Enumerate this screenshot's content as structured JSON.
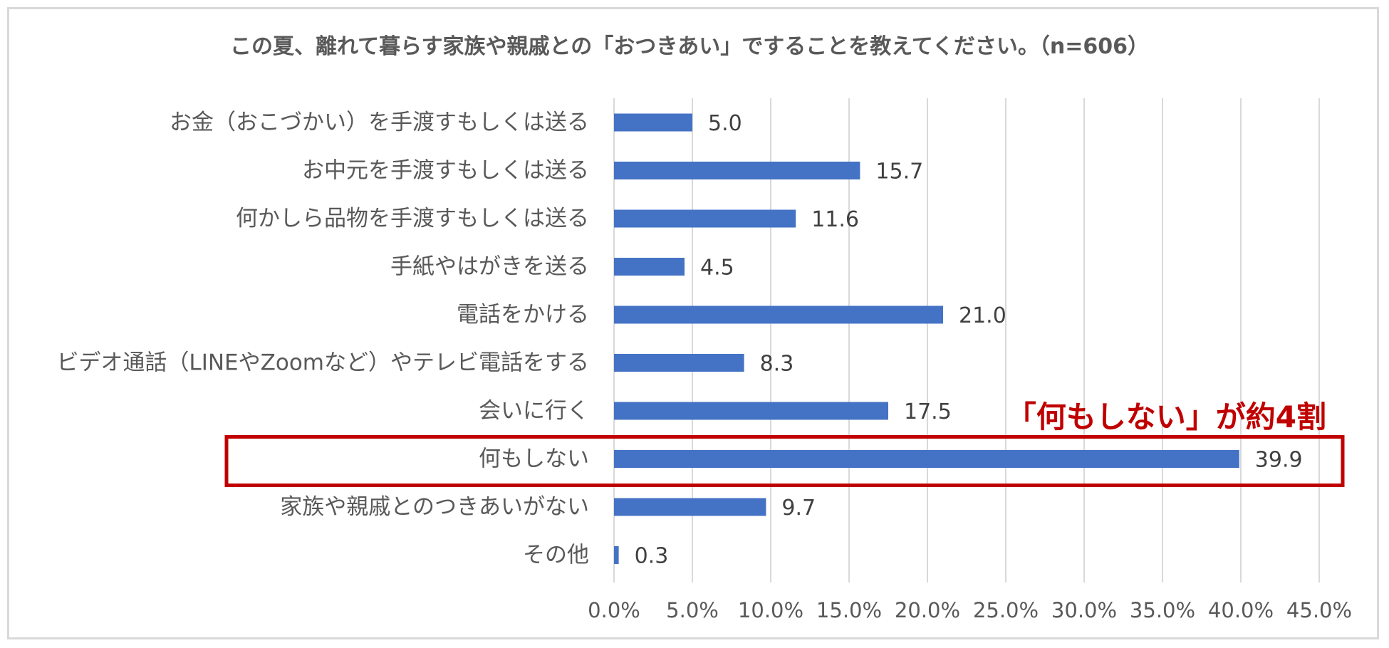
{
  "chart_data": {
    "type": "bar",
    "orientation": "horizontal",
    "title": "この夏、離れて暮らす家族や親戚との「おつきあい」ですることを教えてください。（n=606）",
    "categories": [
      "お金（おこづかい）を手渡すもしくは送る",
      "お中元を手渡すもしくは送る",
      "何かしら品物を手渡すもしくは送る",
      "手紙やはがきを送る",
      "電話をかける",
      "ビデオ通話（LINEやZoomなど）やテレビ電話をする",
      "会いに行く",
      "何もしない",
      "家族や親戚とのつきあいがない",
      "その他"
    ],
    "values": [
      5.0,
      15.7,
      11.6,
      4.5,
      21.0,
      8.3,
      17.5,
      39.9,
      9.7,
      0.3
    ],
    "value_labels": [
      "5.0",
      "15.7",
      "11.6",
      "4.5",
      "21.0",
      "8.3",
      "17.5",
      "39.9",
      "9.7",
      "0.3"
    ],
    "xlim": [
      0,
      45
    ],
    "xticks": [
      "0.0%",
      "5.0%",
      "10.0%",
      "15.0%",
      "20.0%",
      "25.0%",
      "30.0%",
      "35.0%",
      "40.0%",
      "45.0%"
    ],
    "grid": true,
    "bar_color": "#4472c4",
    "highlight": {
      "category_index": 7,
      "annotation": "「何もしない」が約4割",
      "color": "#c00000"
    }
  }
}
